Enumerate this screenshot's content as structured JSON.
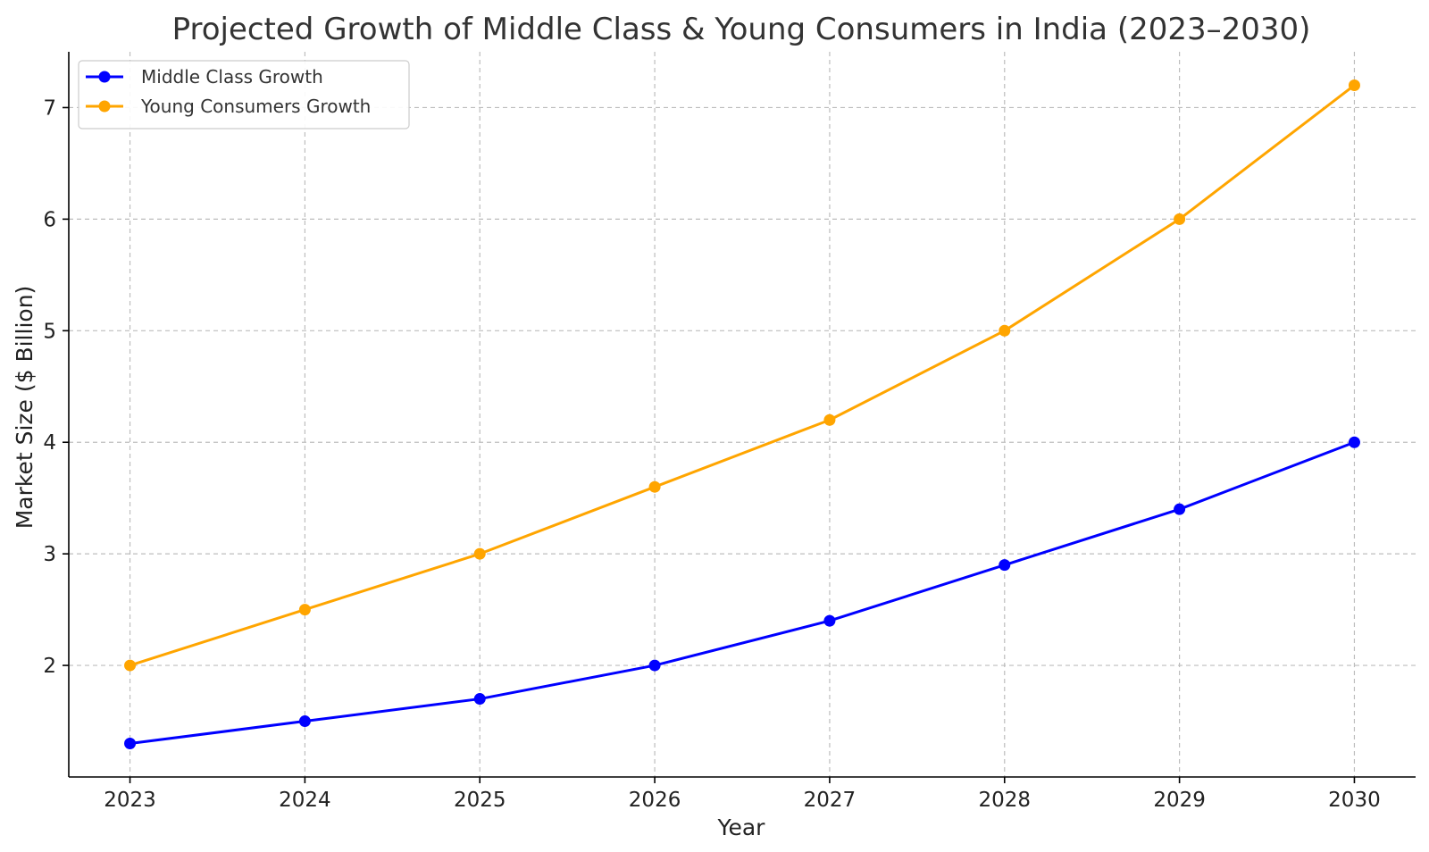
{
  "chart_data": {
    "type": "line",
    "title": "Projected Growth of Middle Class & Young Consumers in India (2023–2030)",
    "xlabel": "Year",
    "ylabel": "Market Size ($ Billion)",
    "categories": [
      "2023",
      "2024",
      "2025",
      "2026",
      "2027",
      "2028",
      "2029",
      "2030"
    ],
    "x": [
      2023,
      2024,
      2025,
      2026,
      2027,
      2028,
      2029,
      2030
    ],
    "xlim": [
      2022.65,
      2030.35
    ],
    "ylim": [
      1.0,
      7.5
    ],
    "yticks": [
      2,
      3,
      4,
      5,
      6,
      7
    ],
    "grid": true,
    "legend_position": "top-left",
    "series": [
      {
        "name": "Middle Class Growth",
        "color": "#0000ff",
        "marker": "circle",
        "values": [
          1.3,
          1.5,
          1.7,
          2.0,
          2.4,
          2.9,
          3.4,
          4.0
        ]
      },
      {
        "name": "Young Consumers Growth",
        "color": "#ffa500",
        "marker": "circle",
        "values": [
          2.0,
          2.5,
          3.0,
          3.6,
          4.2,
          5.0,
          6.0,
          7.2
        ]
      }
    ]
  }
}
